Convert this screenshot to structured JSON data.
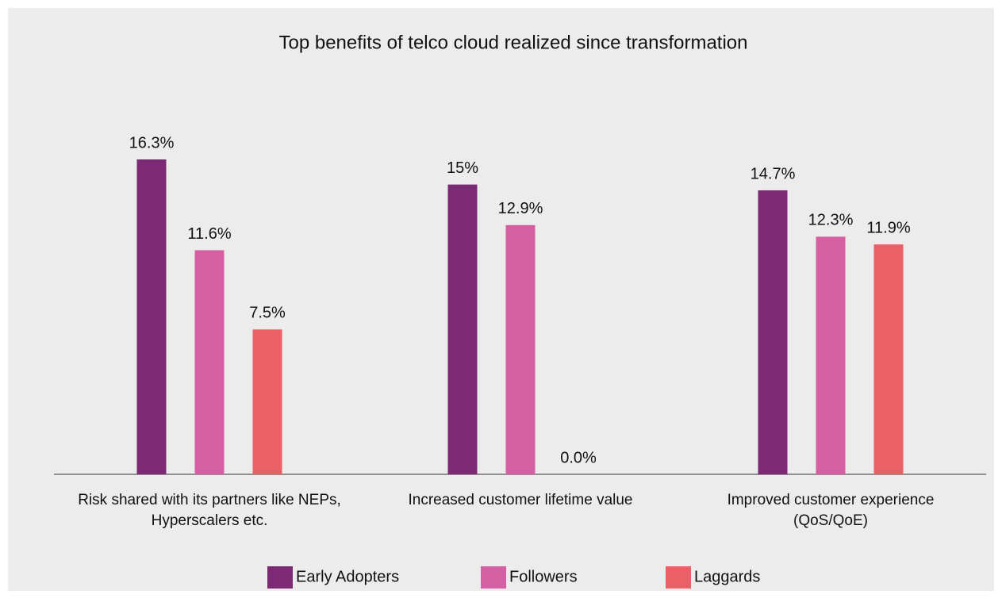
{
  "chart_data": {
    "type": "bar",
    "title": "Top benefits of telco cloud realized since transformation",
    "categories": [
      "Risk shared with its partners like NEPs, Hyperscalers etc.",
      "Increased customer lifetime value",
      "Improved customer experience (QoS/QoE)"
    ],
    "series": [
      {
        "name": "Early Adopters",
        "color": "#7b2a73",
        "values": [
          16.3,
          15,
          14.7
        ],
        "value_labels": [
          "16.3%",
          "15%",
          "14.7%"
        ]
      },
      {
        "name": "Followers",
        "color": "#d45fa3",
        "values": [
          11.6,
          12.9,
          12.3
        ],
        "value_labels": [
          "11.6%",
          "12.9%",
          "12.3%"
        ]
      },
      {
        "name": "Laggards",
        "color": "#ec5f66",
        "values": [
          7.5,
          0.0,
          11.9
        ],
        "value_labels": [
          "7.5%",
          "0.0%",
          "11.9%"
        ]
      }
    ],
    "legend": "bottom"
  }
}
